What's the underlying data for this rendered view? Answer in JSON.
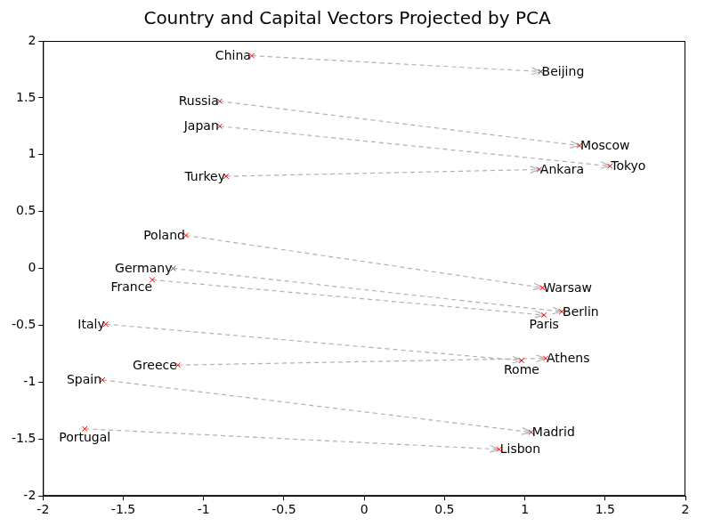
{
  "chart_data": {
    "type": "scatter",
    "title": "Country and Capital Vectors Projected by PCA",
    "xlim": [
      -2,
      2
    ],
    "ylim": [
      -2,
      2
    ],
    "xticks": [
      -2,
      -1.5,
      -1,
      -0.5,
      0,
      0.5,
      1,
      1.5,
      2
    ],
    "yticks": [
      -2,
      -1.5,
      -1,
      -0.5,
      0,
      0.5,
      1,
      1.5,
      2
    ],
    "grid": false,
    "marker": "cross",
    "color": "#ff0000",
    "line_style": "dashed",
    "pairs": [
      {
        "from": {
          "label": "China",
          "x": -0.7,
          "y": 1.87
        },
        "to": {
          "label": "Beijing",
          "x": 1.1,
          "y": 1.73
        }
      },
      {
        "from": {
          "label": "Russia",
          "x": -0.9,
          "y": 1.47
        },
        "to": {
          "label": "Moscow",
          "x": 1.34,
          "y": 1.08
        }
      },
      {
        "from": {
          "label": "Japan",
          "x": -0.9,
          "y": 1.25
        },
        "to": {
          "label": "Tokyo",
          "x": 1.53,
          "y": 0.9
        }
      },
      {
        "from": {
          "label": "Turkey",
          "x": -0.86,
          "y": 0.81
        },
        "to": {
          "label": "Ankara",
          "x": 1.09,
          "y": 0.87
        }
      },
      {
        "from": {
          "label": "Poland",
          "x": -1.11,
          "y": 0.29
        },
        "to": {
          "label": "Warsaw",
          "x": 1.11,
          "y": -0.17
        }
      },
      {
        "from": {
          "label": "Germany",
          "x": -1.19,
          "y": 0.0
        },
        "to": {
          "label": "Berlin",
          "x": 1.23,
          "y": -0.38
        }
      },
      {
        "from": {
          "label": "France",
          "x": -1.32,
          "y": -0.1
        },
        "to": {
          "label": "Paris",
          "x": 1.12,
          "y": -0.41
        }
      },
      {
        "from": {
          "label": "Italy",
          "x": -1.61,
          "y": -0.49
        },
        "to": {
          "label": "Rome",
          "x": 0.98,
          "y": -0.81
        }
      },
      {
        "from": {
          "label": "Greece",
          "x": -1.16,
          "y": -0.85
        },
        "to": {
          "label": "Athens",
          "x": 1.13,
          "y": -0.79
        }
      },
      {
        "from": {
          "label": "Spain",
          "x": -1.63,
          "y": -0.98
        },
        "to": {
          "label": "Madrid",
          "x": 1.04,
          "y": -1.44
        }
      },
      {
        "from": {
          "label": "Portugal",
          "x": -1.74,
          "y": -1.41
        },
        "to": {
          "label": "Lisbon",
          "x": 0.84,
          "y": -1.59
        }
      }
    ]
  }
}
